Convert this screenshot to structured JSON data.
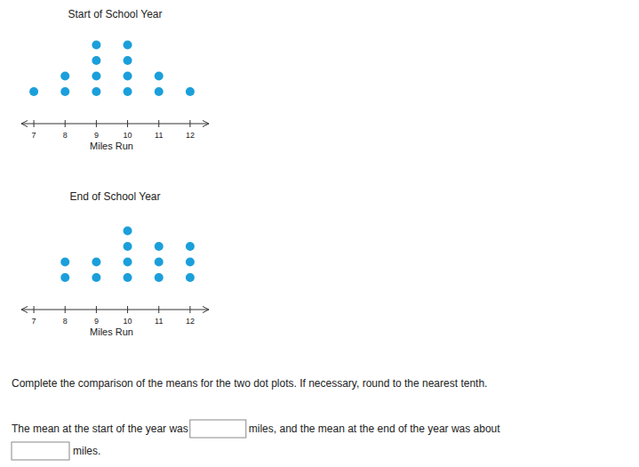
{
  "chart_data": [
    {
      "type": "dot",
      "title": "Start of School Year",
      "x_label": "Miles Run",
      "x": [
        7,
        8,
        9,
        10,
        11,
        12
      ],
      "values": [
        1,
        2,
        4,
        4,
        2,
        1
      ],
      "xlim": [
        6.6,
        12.6
      ],
      "xticks": [
        7,
        8,
        9,
        10,
        11,
        12
      ],
      "color": "#1b9fdb"
    },
    {
      "type": "dot",
      "title": "End of School Year",
      "x_label": "Miles Run",
      "x": [
        7,
        8,
        9,
        10,
        11,
        12
      ],
      "values": [
        0,
        2,
        2,
        4,
        3,
        3
      ],
      "xlim": [
        6.6,
        12.6
      ],
      "xticks": [
        7,
        8,
        9,
        10,
        11,
        12
      ],
      "color": "#1b9fdb"
    }
  ],
  "question": {
    "instruction": "Complete the comparison of the means for the two dot plots. If necessary, round to the nearest tenth.",
    "part1": "The mean at the start of the year was",
    "part2": "miles, and the mean at the end of the year was about",
    "part3": "miles."
  }
}
